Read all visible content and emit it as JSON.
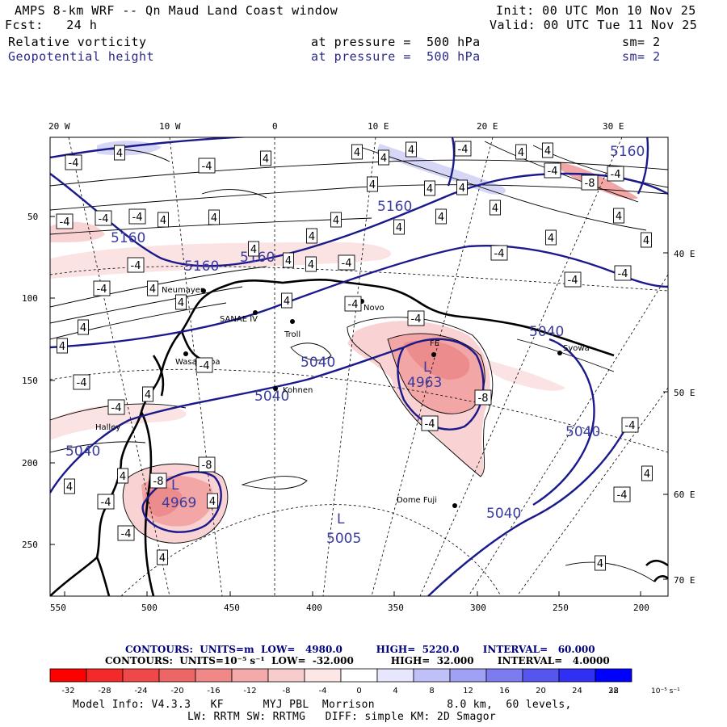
{
  "header": {
    "line1_left": "AMPS 8-km WRF -- Qn Maud Land Coast window",
    "line1_right": "Init: 00 UTC Mon 10 Nov 25",
    "line2_left": "Fcst:   24 h",
    "line2_right": "Valid: 00 UTC Tue 11 Nov 25",
    "field1": {
      "name": "Relative vorticity",
      "level": "at pressure =  500 hPa",
      "sm": "sm= 2"
    },
    "field2": {
      "name": "Geopotential height",
      "level": "at pressure =  500 hPa",
      "sm": "sm= 2"
    }
  },
  "axes": {
    "top_lon_labels": [
      "20 W",
      "10 W",
      "0",
      "10 E",
      "20 E",
      "30 E"
    ],
    "right_lon_labels": [
      "40 E",
      "50 E",
      "60 E",
      "70 E"
    ],
    "left_y_labels": [
      "50",
      "100",
      "150",
      "200",
      "250"
    ],
    "bottom_x_labels": [
      "550",
      "500",
      "450",
      "400",
      "350",
      "300",
      "250",
      "200"
    ]
  },
  "stations": [
    "Neumayer",
    "SANAE IV",
    "Troll",
    "Novo",
    "Syowa",
    "Wasa/Aboa",
    "Kohnen",
    "Halley",
    "Dome Fuji",
    "FE"
  ],
  "height_contour_labels": [
    "5160",
    "5160",
    "5160",
    "5160",
    "5160",
    "5040",
    "5040",
    "5040",
    "5040",
    "5040",
    "5040"
  ],
  "lows": [
    {
      "letter": "L",
      "value": "4963"
    },
    {
      "letter": "L",
      "value": "4969"
    },
    {
      "letter": "L",
      "value": "5005"
    }
  ],
  "vorticity_box_labels": [
    "4",
    "-4",
    "-8"
  ],
  "footer": {
    "contours_height": "CONTOURS:  UNITS=m  LOW=   4980.0          HIGH=  5220.0       INTERVAL=   60.000",
    "contours_vort": "CONTOURS:  UNITS=10⁻⁵ s⁻¹  LOW=  -32.000           HIGH=  32.000       INTERVAL=   4.0000",
    "scale_ticks": [
      "-32",
      "-28",
      "-24",
      "-20",
      "-16",
      "-12",
      "-8",
      "-4",
      "0",
      "4",
      "8",
      "12",
      "16",
      "20",
      "24",
      "28",
      "32"
    ],
    "scale_unit": "10⁻⁵ s⁻¹",
    "scale_colors": [
      "#ff0000",
      "#f42a2a",
      "#f04848",
      "#ec6666",
      "#f08888",
      "#f4aaaa",
      "#f8cccc",
      "#fce6e6",
      "#ffffff",
      "#ffffff",
      "#e6e6fc",
      "#c0c0f8",
      "#a0a0f4",
      "#7c7cf0",
      "#5656ee",
      "#3030f4",
      "#0000ff"
    ],
    "model_info1": "Model Info: V4.3.3   KF      MYJ PBL  Morrison           8.0 km,  60 levels,",
    "model_info2": "LW: RRTM SW: RRTMG   DIFF: simple KM: 2D Smagor"
  }
}
